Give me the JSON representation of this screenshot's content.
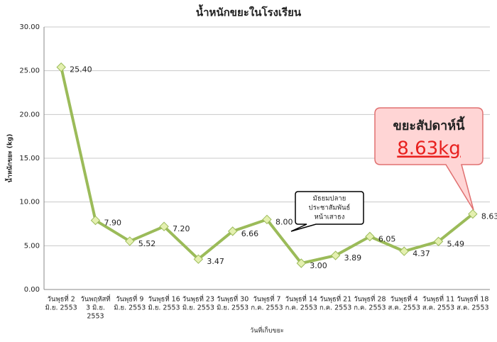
{
  "chart_data": {
    "type": "line",
    "title": "น้ำหนักขยะในโรงเรียน",
    "x_label": "วันที่เก็บขยะ",
    "y_label": "น้ำหนักขยะ (kg)",
    "categories": [
      [
        "วันพุธที่ 2",
        "มิ.ย. 2553"
      ],
      [
        "วันพฤหัสที่",
        "3 มิ.ย.",
        "2553"
      ],
      [
        "วันพุธที่ 9",
        "มิ.ย. 2553"
      ],
      [
        "วันพุธที่ 16",
        "มิ.ย. 2553"
      ],
      [
        "วันพุธที่ 23",
        "มิ.ย. 2553"
      ],
      [
        "วันพุธที่ 30",
        "มิ.ย. 2553"
      ],
      [
        "วันพุธที่ 7",
        "ก.ค. 2553"
      ],
      [
        "วันพุธที่ 14",
        "ก.ค. 2553"
      ],
      [
        "วันพุธที่ 21",
        "ก.ค. 2553"
      ],
      [
        "วันพุธที่ 28",
        "ก.ค. 2553"
      ],
      [
        "วันพุธที่ 4",
        "ส.ค. 2553"
      ],
      [
        "วันพุธที่ 11",
        "ส.ค. 2553"
      ],
      [
        "วันพุธที่ 18",
        "ส.ค. 2553"
      ]
    ],
    "values": [
      25.4,
      7.9,
      5.52,
      7.2,
      3.47,
      6.66,
      8.0,
      3.0,
      3.89,
      6.05,
      4.37,
      5.49,
      8.63
    ],
    "value_labels": [
      "25.40",
      "7.90",
      "5.52",
      "7.20",
      "3.47",
      "6.66",
      "8.00",
      "3.00",
      "3.89",
      "6.05",
      "4.37",
      "5.49",
      "8.63"
    ],
    "color": "#9bbb59",
    "ylim": [
      0,
      30
    ],
    "yticks": [
      {
        "value": 0,
        "label": "0.00"
      },
      {
        "value": 5,
        "label": "5.00"
      },
      {
        "value": 10,
        "label": "10.00"
      },
      {
        "value": 15,
        "label": "15.00"
      },
      {
        "value": 20,
        "label": "20.00"
      },
      {
        "value": 25,
        "label": "25.00"
      },
      {
        "value": 30,
        "label": "30.00"
      }
    ],
    "grid": true,
    "annotations": [
      {
        "text": [
          "มัธยมปลาย",
          "ประชาสัมพันธ์",
          "หน้าเสาธง"
        ]
      },
      {
        "text": [
          "ขยะสัปดาห์นี้",
          "8.63kg"
        ]
      }
    ]
  }
}
